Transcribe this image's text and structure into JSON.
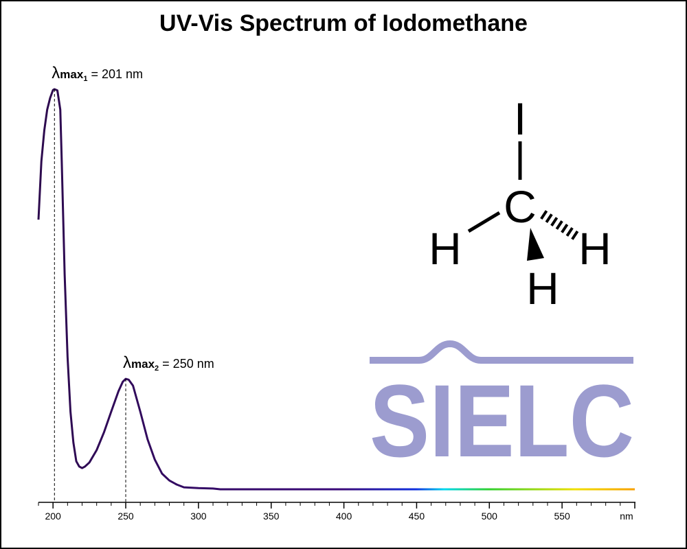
{
  "chart_data": {
    "type": "line",
    "title": "UV-Vis Spectrum of Iodomethane",
    "x": [
      190,
      192,
      194,
      196,
      198,
      200,
      201,
      203,
      205,
      206,
      208,
      210,
      212,
      214,
      216,
      218,
      220,
      222,
      225,
      230,
      235,
      240,
      245,
      248,
      250,
      252,
      255,
      260,
      265,
      270,
      275,
      280,
      285,
      290,
      300,
      310,
      315,
      600
    ],
    "values": [
      0.674,
      0.82,
      0.897,
      0.949,
      0.978,
      0.998,
      1.0,
      0.997,
      0.949,
      0.82,
      0.537,
      0.331,
      0.194,
      0.117,
      0.07,
      0.057,
      0.053,
      0.057,
      0.067,
      0.098,
      0.142,
      0.194,
      0.245,
      0.269,
      0.276,
      0.274,
      0.259,
      0.194,
      0.125,
      0.074,
      0.039,
      0.022,
      0.012,
      0.005,
      0.003,
      0.002,
      0,
      0
    ],
    "color": "#2d0a4e",
    "xlim": [
      190,
      600
    ],
    "ylim": [
      0,
      1
    ],
    "xticks": [
      200,
      250,
      300,
      350,
      400,
      450,
      500,
      550,
      {
        "value": 600,
        "label": "nm"
      }
    ],
    "minor_xticks": [
      190,
      210,
      220,
      230,
      240,
      260,
      270,
      280,
      290,
      310,
      320,
      330,
      340,
      360,
      370,
      380,
      390,
      410,
      420,
      430,
      440,
      460,
      470,
      480,
      490,
      510,
      520,
      530,
      540,
      560,
      570,
      580,
      590
    ],
    "annotations": [
      {
        "symbol": "λ",
        "sub": "max",
        "index": "1",
        "text": "= 201 nm",
        "x": 201,
        "y": 1.0
      },
      {
        "symbol": "λ",
        "sub": "max",
        "index": "2",
        "text": "= 250 nm",
        "x": 250,
        "y": 0.276
      }
    ]
  },
  "structure": {
    "atoms": [
      "I",
      "C",
      "H",
      "H",
      "H"
    ]
  },
  "logo": "SIELC"
}
